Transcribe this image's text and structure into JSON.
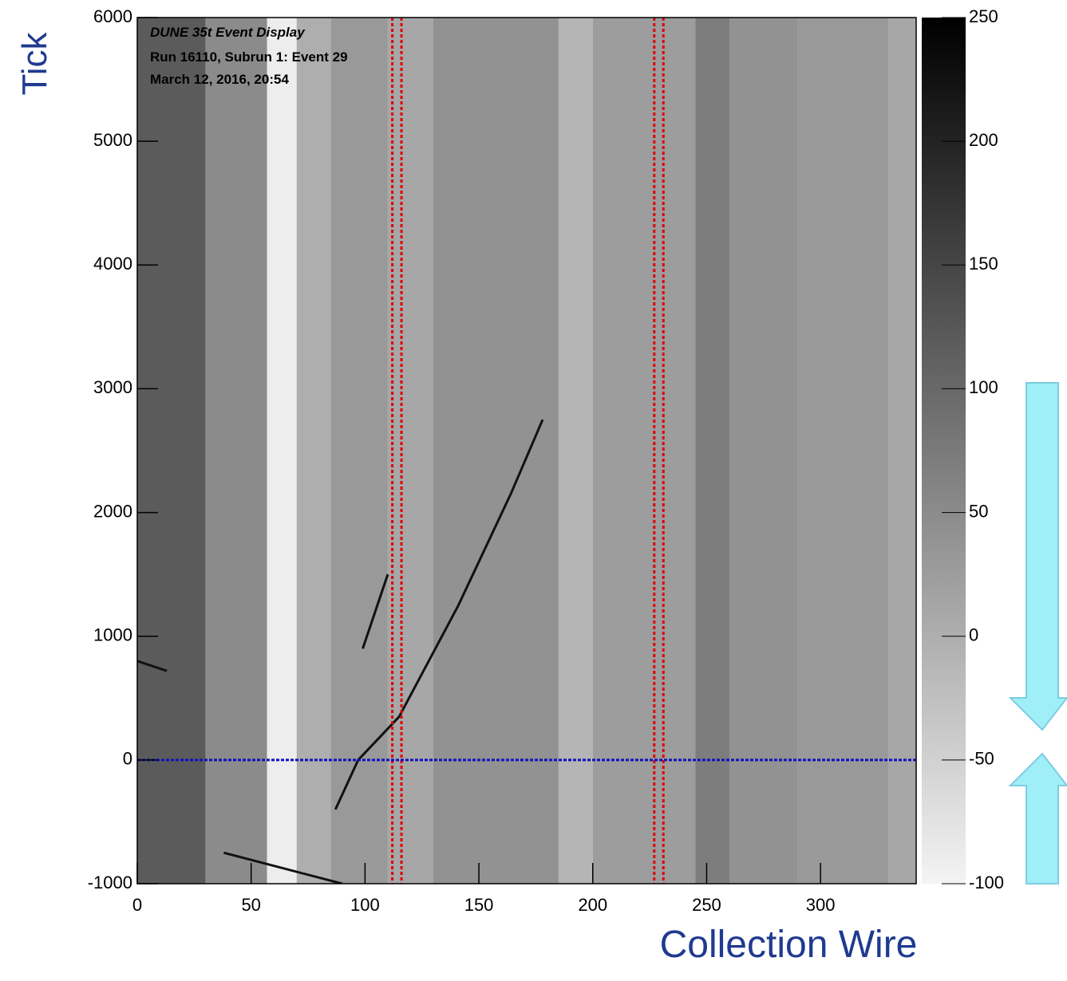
{
  "chart_data": {
    "type": "heatmap",
    "annotations": [
      "DUNE 35t Event Display",
      "Run 16110, Subrun 1: Event 29",
      "March 12, 2016, 20:54"
    ],
    "x_label": "Collection Wire",
    "y_label": "Tick",
    "xlim": [
      0,
      342
    ],
    "xticks": [
      0,
      50,
      100,
      150,
      200,
      250,
      300
    ],
    "ylim": [
      -1000,
      6000
    ],
    "yticks": [
      -1000,
      0,
      1000,
      2000,
      3000,
      4000,
      5000,
      6000
    ],
    "zlim": [
      -100,
      250
    ],
    "zticks": [
      -100,
      -50,
      0,
      50,
      100,
      150,
      200,
      250
    ],
    "bands": [
      {
        "wires": [
          0,
          30
        ],
        "value": 120
      },
      {
        "wires": [
          30,
          57
        ],
        "value": 50
      },
      {
        "wires": [
          57,
          70
        ],
        "value": -90
      },
      {
        "wires": [
          70,
          85
        ],
        "value": 0
      },
      {
        "wires": [
          85,
          110
        ],
        "value": 30
      },
      {
        "wires": [
          110,
          130
        ],
        "value": 10
      },
      {
        "wires": [
          130,
          185
        ],
        "value": 40
      },
      {
        "wires": [
          185,
          200
        ],
        "value": -10
      },
      {
        "wires": [
          200,
          245
        ],
        "value": 25
      },
      {
        "wires": [
          245,
          260
        ],
        "value": 70
      },
      {
        "wires": [
          260,
          290
        ],
        "value": 40
      },
      {
        "wires": [
          290,
          330
        ],
        "value": 30
      },
      {
        "wires": [
          330,
          342
        ],
        "value": 10
      }
    ],
    "tracks": [
      {
        "x": [
          87,
          97,
          115,
          141,
          164,
          178
        ],
        "y": [
          -400,
          0,
          350,
          1250,
          2150,
          2750
        ]
      },
      {
        "x": [
          99,
          110
        ],
        "y": [
          900,
          1500
        ]
      },
      {
        "x": [
          38,
          90
        ],
        "y": [
          -750,
          -1000
        ]
      },
      {
        "x": [
          0,
          13
        ],
        "y": [
          800,
          720
        ]
      }
    ],
    "vlines": [
      112,
      116,
      227,
      231
    ],
    "vline_color": "#e00000",
    "hline": 0,
    "hline_color": "#1010c0",
    "track_color": "#111111"
  }
}
